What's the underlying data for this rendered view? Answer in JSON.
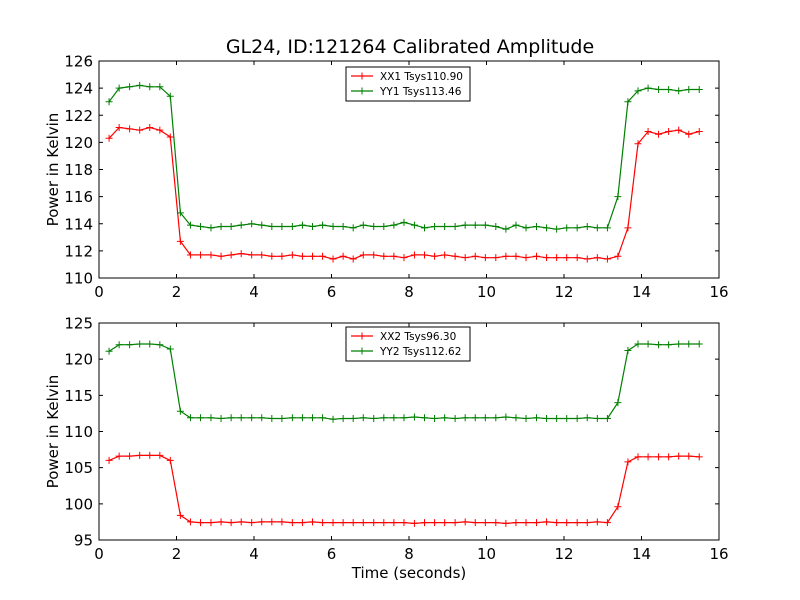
{
  "figure_title": "GL24, ID:121264 Calibrated Amplitude",
  "chart_data": [
    {
      "type": "line",
      "title": "GL24, ID:121264 Calibrated Amplitude",
      "xlabel": "",
      "ylabel": "Power in Kelvin",
      "xlim": [
        0,
        16
      ],
      "ylim": [
        110,
        126
      ],
      "xticks": [
        "0",
        "2",
        "4",
        "6",
        "8",
        "10",
        "12",
        "14",
        "16"
      ],
      "yticks": [
        "110",
        "112",
        "114",
        "116",
        "118",
        "120",
        "122",
        "124",
        "126"
      ],
      "grid": false,
      "legend_position": "top-center",
      "x": [
        0.26,
        0.52,
        0.79,
        1.05,
        1.31,
        1.57,
        1.84,
        2.1,
        2.36,
        2.62,
        2.89,
        3.15,
        3.41,
        3.67,
        3.94,
        4.2,
        4.46,
        4.72,
        4.99,
        5.25,
        5.51,
        5.77,
        6.04,
        6.3,
        6.56,
        6.82,
        7.09,
        7.35,
        7.61,
        7.87,
        8.14,
        8.4,
        8.66,
        8.92,
        9.19,
        9.45,
        9.71,
        9.97,
        10.24,
        10.5,
        10.76,
        11.02,
        11.29,
        11.55,
        11.81,
        12.07,
        12.34,
        12.6,
        12.86,
        13.12,
        13.39,
        13.65,
        13.91,
        14.17,
        14.44,
        14.7,
        14.96,
        15.22,
        15.49
      ],
      "series": [
        {
          "name": "XX1 Tsys110.90",
          "color": "#ff0000",
          "values": [
            120.3,
            121.1,
            121.0,
            120.9,
            121.1,
            120.9,
            120.4,
            112.7,
            111.7,
            111.7,
            111.7,
            111.6,
            111.7,
            111.8,
            111.7,
            111.7,
            111.6,
            111.6,
            111.7,
            111.6,
            111.6,
            111.6,
            111.4,
            111.6,
            111.4,
            111.7,
            111.7,
            111.6,
            111.6,
            111.5,
            111.7,
            111.7,
            111.6,
            111.7,
            111.6,
            111.5,
            111.6,
            111.5,
            111.5,
            111.6,
            111.6,
            111.5,
            111.6,
            111.5,
            111.5,
            111.5,
            111.5,
            111.4,
            111.5,
            111.4,
            111.6,
            113.7,
            119.9,
            120.8,
            120.6,
            120.8,
            120.9,
            120.6,
            120.8
          ]
        },
        {
          "name": "YY1 Tsys113.46",
          "color": "#008000",
          "values": [
            123.0,
            124.0,
            124.1,
            124.2,
            124.1,
            124.1,
            123.4,
            114.8,
            113.9,
            113.8,
            113.7,
            113.8,
            113.8,
            113.9,
            114.0,
            113.9,
            113.8,
            113.8,
            113.8,
            113.9,
            113.8,
            113.9,
            113.8,
            113.8,
            113.7,
            113.9,
            113.8,
            113.8,
            113.9,
            114.1,
            113.9,
            113.7,
            113.8,
            113.8,
            113.8,
            113.9,
            113.9,
            113.9,
            113.8,
            113.6,
            113.9,
            113.7,
            113.8,
            113.7,
            113.6,
            113.7,
            113.7,
            113.8,
            113.7,
            113.7,
            116.0,
            123.0,
            123.8,
            124.0,
            123.9,
            123.9,
            123.8,
            123.9,
            123.9
          ]
        }
      ]
    },
    {
      "type": "line",
      "title": "",
      "xlabel": "Time (seconds)",
      "ylabel": "Power in Kelvin",
      "xlim": [
        0,
        16
      ],
      "ylim": [
        95,
        125
      ],
      "xticks": [
        "0",
        "2",
        "4",
        "6",
        "8",
        "10",
        "12",
        "14",
        "16"
      ],
      "yticks": [
        "95",
        "100",
        "105",
        "110",
        "115",
        "120",
        "125"
      ],
      "grid": false,
      "legend_position": "top-center",
      "x": [
        0.26,
        0.52,
        0.79,
        1.05,
        1.31,
        1.57,
        1.84,
        2.1,
        2.36,
        2.62,
        2.89,
        3.15,
        3.41,
        3.67,
        3.94,
        4.2,
        4.46,
        4.72,
        4.99,
        5.25,
        5.51,
        5.77,
        6.04,
        6.3,
        6.56,
        6.82,
        7.09,
        7.35,
        7.61,
        7.87,
        8.14,
        8.4,
        8.66,
        8.92,
        9.19,
        9.45,
        9.71,
        9.97,
        10.24,
        10.5,
        10.76,
        11.02,
        11.29,
        11.55,
        11.81,
        12.07,
        12.34,
        12.6,
        12.86,
        13.12,
        13.39,
        13.65,
        13.91,
        14.17,
        14.44,
        14.7,
        14.96,
        15.22,
        15.49
      ],
      "series": [
        {
          "name": "XX2 Tsys96.30",
          "color": "#ff0000",
          "values": [
            106.0,
            106.6,
            106.6,
            106.7,
            106.7,
            106.7,
            106.0,
            98.4,
            97.5,
            97.4,
            97.4,
            97.5,
            97.4,
            97.5,
            97.4,
            97.5,
            97.5,
            97.5,
            97.4,
            97.4,
            97.5,
            97.4,
            97.4,
            97.4,
            97.4,
            97.4,
            97.4,
            97.4,
            97.4,
            97.4,
            97.3,
            97.4,
            97.4,
            97.4,
            97.4,
            97.5,
            97.4,
            97.4,
            97.4,
            97.3,
            97.4,
            97.4,
            97.4,
            97.5,
            97.4,
            97.4,
            97.4,
            97.4,
            97.5,
            97.4,
            99.6,
            105.8,
            106.5,
            106.5,
            106.5,
            106.5,
            106.6,
            106.6,
            106.5
          ]
        },
        {
          "name": "YY2 Tsys112.62",
          "color": "#008000",
          "values": [
            121.1,
            122.0,
            122.0,
            122.1,
            122.1,
            122.0,
            121.4,
            112.8,
            111.9,
            111.9,
            111.9,
            111.8,
            111.9,
            111.9,
            111.9,
            111.9,
            111.8,
            111.8,
            111.9,
            111.9,
            111.9,
            111.9,
            111.7,
            111.8,
            111.8,
            111.9,
            111.8,
            111.9,
            111.9,
            111.9,
            112.0,
            111.9,
            111.8,
            111.9,
            111.8,
            111.9,
            111.9,
            111.9,
            111.9,
            112.0,
            111.9,
            111.8,
            111.9,
            111.8,
            111.8,
            111.8,
            111.8,
            111.9,
            111.8,
            111.8,
            114.0,
            121.2,
            122.1,
            122.1,
            122.0,
            122.0,
            122.1,
            122.1,
            122.1
          ]
        }
      ]
    }
  ]
}
